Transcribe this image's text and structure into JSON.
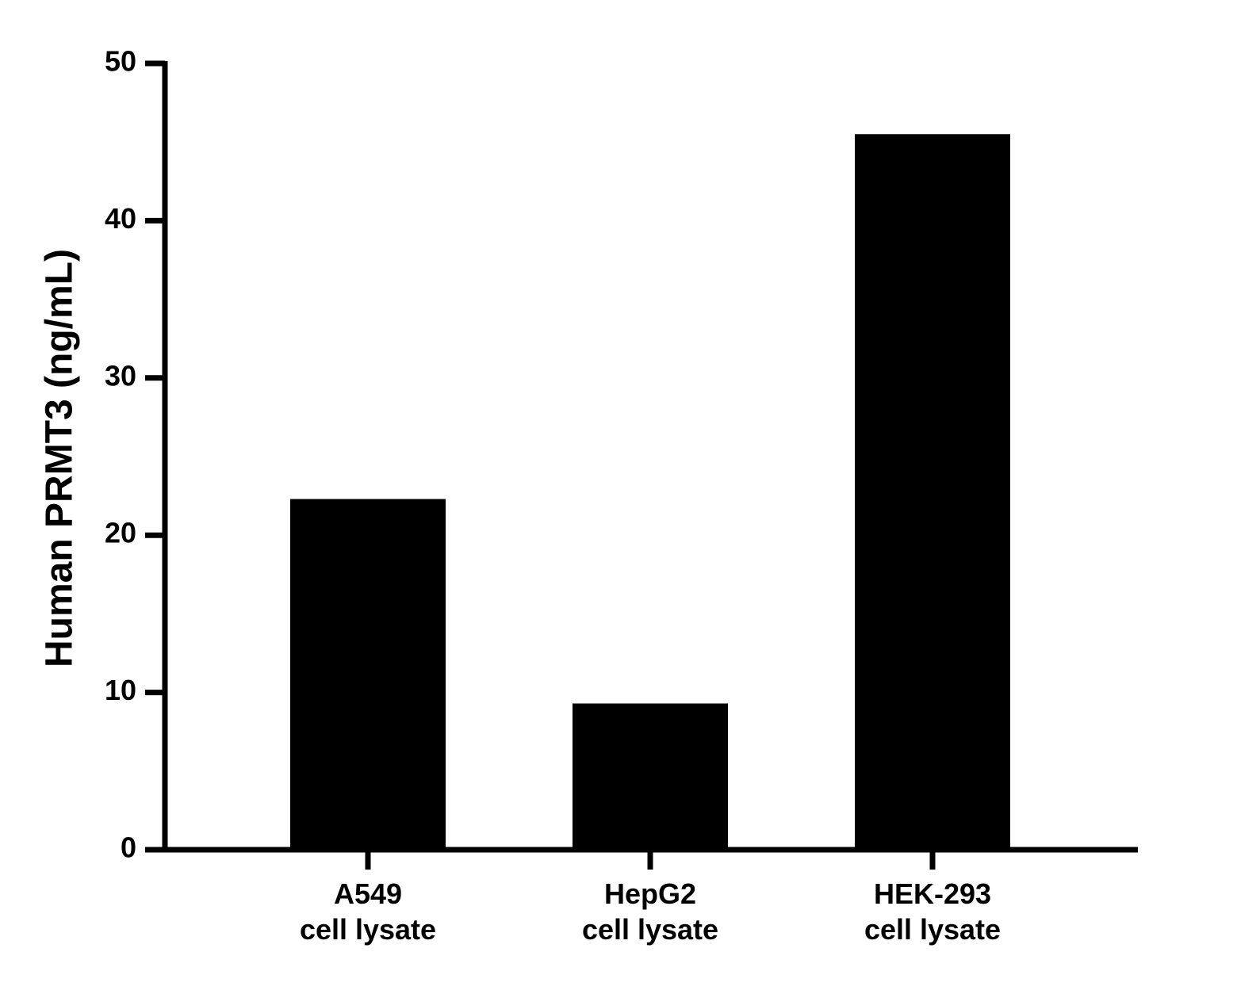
{
  "chart_data": {
    "type": "bar",
    "y_label": "Human PRMT3 (ng/mL)",
    "categories": [
      "A549\ncell lysate",
      "HepG2\ncell lysate",
      "HEK-293\ncell lysate"
    ],
    "values": [
      22.3,
      9.3,
      45.5
    ],
    "color": "#000000",
    "ylim": [
      0,
      50
    ],
    "yticks": [
      0,
      10,
      20,
      30,
      40,
      50
    ],
    "grid": false
  }
}
